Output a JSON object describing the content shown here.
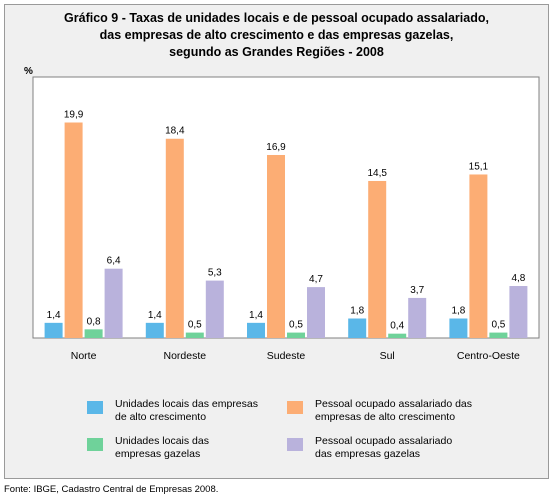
{
  "title_lines": [
    "Gráfico 9 - Taxas de unidades locais e de pessoal ocupado assalariado,",
    "das empresas de alto crescimento e das empresas gazelas,",
    "segundo as Grandes Regiões - 2008"
  ],
  "y_unit": "%",
  "source": "Fonte: IBGE, Cadastro Central de Empresas 2008.",
  "legend": [
    {
      "label": "Unidades locais das empresas\nde alto crescimento",
      "color": "#5ab7e8"
    },
    {
      "label": "Pessoal ocupado assalariado das\nempresas de alto crescimento",
      "color": "#fcad74"
    },
    {
      "label": "Unidades locais das\nempresas gazelas",
      "color": "#6fd29a"
    },
    {
      "label": "Pessoal ocupado assalariado\ndas empresas gazelas",
      "color": "#b9b2dc"
    }
  ],
  "chart_data": {
    "type": "bar",
    "title": "Gráfico 9 - Taxas de unidades locais e de pessoal ocupado assalariado, das empresas de alto crescimento e das empresas gazelas, segundo as Grandes Regiões - 2008",
    "ylabel": "%",
    "xlabel": "",
    "ylim": [
      0,
      21
    ],
    "grid": false,
    "legend_position": "bottom",
    "categories": [
      "Norte",
      "Nordeste",
      "Sudeste",
      "Sul",
      "Centro-Oeste"
    ],
    "series": [
      {
        "name": "Unidades locais das empresas de alto crescimento",
        "color": "#5ab7e8",
        "values": [
          1.4,
          1.4,
          1.4,
          1.8,
          1.8
        ],
        "labels": [
          "1,4",
          "1,4",
          "1,4",
          "1,8",
          "1,8"
        ]
      },
      {
        "name": "Pessoal ocupado assalariado das empresas de alto crescimento",
        "color": "#fcad74",
        "values": [
          19.9,
          18.4,
          16.9,
          14.5,
          15.1
        ],
        "labels": [
          "19,9",
          "18,4",
          "16,9",
          "14,5",
          "15,1"
        ]
      },
      {
        "name": "Unidades locais das empresas gazelas",
        "color": "#6fd29a",
        "values": [
          0.8,
          0.5,
          0.5,
          0.4,
          0.5
        ],
        "labels": [
          "0,8",
          "0,5",
          "0,5",
          "0,4",
          "0,5"
        ]
      },
      {
        "name": "Pessoal ocupado assalariado das empresas gazelas",
        "color": "#b9b2dc",
        "values": [
          6.4,
          5.3,
          4.7,
          3.7,
          4.8
        ],
        "labels": [
          "6,4",
          "5,3",
          "4,7",
          "3,7",
          "4,8"
        ]
      }
    ]
  }
}
